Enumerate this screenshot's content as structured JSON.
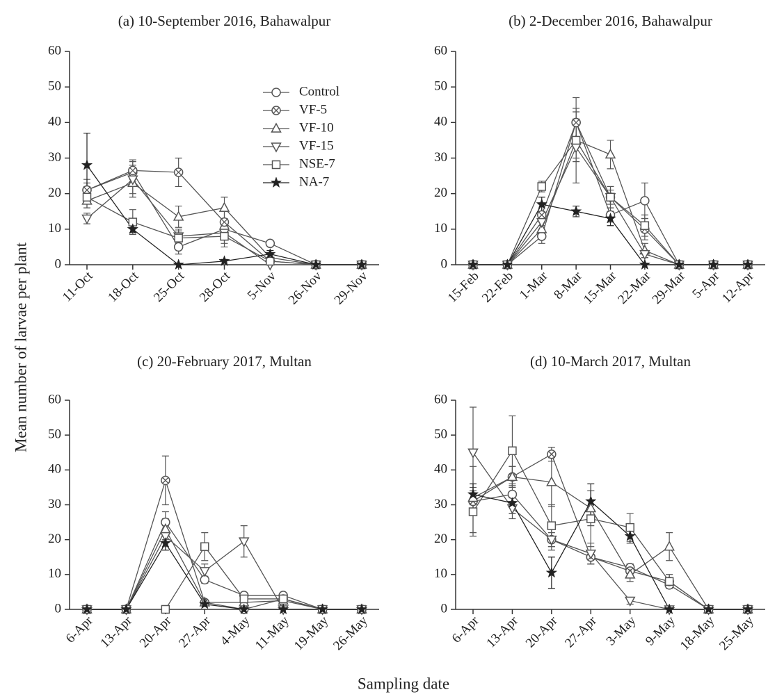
{
  "y_label": "Mean number of larvae per plant",
  "x_label": "Sampling date",
  "chart_data": [
    {
      "type": "line",
      "title": "(a) 10-September 2016, Bahawalpur",
      "legend": "upper right",
      "categories": [
        "11-Oct",
        "18-Oct",
        "25-Oct",
        "28-Oct",
        "5-Nov",
        "26-Nov",
        "29-Nov"
      ],
      "ylim": [
        0,
        60
      ],
      "yticks": [
        0,
        10,
        20,
        30,
        40,
        50,
        60
      ],
      "series": [
        {
          "name": "Control",
          "color": "#555555",
          "marker": "circle",
          "values": [
            21,
            26,
            5,
            10,
            6,
            0,
            0
          ],
          "errors": [
            2,
            2,
            2,
            2,
            0.5,
            0,
            0
          ]
        },
        {
          "name": "VF-5",
          "color": "#555555",
          "marker": "circle-x",
          "values": [
            21,
            26.5,
            26,
            12,
            1,
            0,
            0
          ],
          "errors": [
            3,
            3,
            4,
            3,
            0.5,
            0,
            0
          ]
        },
        {
          "name": "VF-10",
          "color": "#555555",
          "marker": "triangle-up",
          "values": [
            18,
            23,
            13.5,
            16,
            2,
            0,
            0
          ],
          "errors": [
            2,
            3,
            3,
            3,
            1,
            0,
            0
          ]
        },
        {
          "name": "VF-15",
          "color": "#555555",
          "marker": "triangle-down",
          "values": [
            13,
            24,
            8,
            9,
            0,
            0,
            0
          ],
          "errors": [
            1.5,
            5,
            2,
            3,
            0,
            0,
            0
          ]
        },
        {
          "name": "NSE-7",
          "color": "#555555",
          "marker": "square",
          "values": [
            19,
            12,
            7.5,
            8,
            1,
            0,
            0
          ],
          "errors": [
            3,
            3.5,
            2,
            3,
            0.5,
            0,
            0
          ]
        },
        {
          "name": "NA-7",
          "color": "#222222",
          "marker": "star",
          "values": [
            28,
            10,
            0,
            1,
            3,
            0,
            0
          ],
          "errors": [
            9,
            1,
            0,
            0.5,
            1,
            0,
            0
          ]
        }
      ]
    },
    {
      "type": "line",
      "title": "(b) 2-December 2016, Bahawalpur",
      "categories": [
        "15-Feb",
        "22-Feb",
        "1-Mar",
        "8-Mar",
        "15-Mar",
        "22-Mar",
        "29-Mar",
        "5-Apr",
        "12-Apr"
      ],
      "ylim": [
        0,
        60
      ],
      "yticks": [
        0,
        10,
        20,
        30,
        40,
        50,
        60
      ],
      "series": [
        {
          "name": "Control",
          "color": "#555555",
          "marker": "circle",
          "values": [
            0,
            0,
            8,
            40,
            14,
            18,
            0,
            0,
            0
          ],
          "errors": [
            0,
            0,
            2,
            7,
            2,
            5,
            0,
            0,
            0
          ]
        },
        {
          "name": "VF-5",
          "color": "#555555",
          "marker": "circle-x",
          "values": [
            0,
            0,
            14,
            40,
            19,
            10,
            0,
            0,
            0
          ],
          "errors": [
            0,
            0,
            3,
            4,
            2,
            3,
            0,
            0,
            0
          ]
        },
        {
          "name": "VF-10",
          "color": "#555555",
          "marker": "triangle-up",
          "values": [
            0,
            0,
            10,
            35,
            31,
            4,
            0,
            0,
            0
          ],
          "errors": [
            0,
            0,
            2,
            5,
            4,
            2,
            0,
            0,
            0
          ]
        },
        {
          "name": "VF-15",
          "color": "#555555",
          "marker": "triangle-down",
          "values": [
            0,
            0,
            12,
            33,
            19,
            3,
            0,
            0,
            0
          ],
          "errors": [
            0,
            0,
            2,
            10,
            3,
            1,
            0,
            0,
            0
          ]
        },
        {
          "name": "NSE-7",
          "color": "#555555",
          "marker": "square",
          "values": [
            0,
            0,
            22,
            35,
            19,
            11,
            0,
            0,
            0
          ],
          "errors": [
            0,
            0,
            1.5,
            6,
            3,
            3,
            0,
            0,
            0
          ]
        },
        {
          "name": "NA-7",
          "color": "#222222",
          "marker": "star",
          "values": [
            0,
            0,
            17,
            15,
            13,
            0,
            0,
            0,
            0
          ],
          "errors": [
            0,
            0,
            2,
            1.5,
            2,
            0,
            0,
            0,
            0
          ]
        }
      ]
    },
    {
      "type": "line",
      "title": "(c) 20-February 2017, Multan",
      "categories": [
        "6-Apr",
        "13-Apr",
        "20-Apr",
        "27-Apr",
        "4-May",
        "11-May",
        "19-May",
        "26-May"
      ],
      "ylim": [
        0,
        60
      ],
      "yticks": [
        0,
        10,
        20,
        30,
        40,
        50,
        60
      ],
      "series": [
        {
          "name": "Control",
          "color": "#555555",
          "marker": "circle",
          "values": [
            0,
            0,
            25,
            8.5,
            4,
            4,
            0,
            0
          ],
          "errors": [
            0,
            0,
            3,
            1,
            0.5,
            0.5,
            0,
            0
          ]
        },
        {
          "name": "VF-5",
          "color": "#555555",
          "marker": "circle-x",
          "values": [
            0,
            0,
            37,
            2,
            0,
            3,
            0,
            0
          ],
          "errors": [
            0,
            0,
            7,
            0.5,
            0,
            0.5,
            0,
            0
          ]
        },
        {
          "name": "VF-10",
          "color": "#555555",
          "marker": "triangle-up",
          "values": [
            0,
            0,
            23,
            2,
            2,
            2.5,
            0,
            0
          ],
          "errors": [
            0,
            0,
            3,
            0.5,
            0.5,
            0.5,
            0,
            0
          ]
        },
        {
          "name": "VF-15",
          "color": "#555555",
          "marker": "triangle-down",
          "values": [
            0,
            0,
            21,
            11,
            19.5,
            0,
            0,
            0
          ],
          "errors": [
            0,
            0,
            3,
            2,
            4.5,
            0,
            0,
            0
          ]
        },
        {
          "name": "NSE-7",
          "color": "#555555",
          "marker": "square",
          "values": [
            0,
            0,
            0,
            18,
            3,
            3,
            0,
            0
          ],
          "errors": [
            0,
            0,
            0,
            4,
            0.5,
            0.5,
            0,
            0
          ]
        },
        {
          "name": "NA-7",
          "color": "#222222",
          "marker": "star",
          "values": [
            0,
            0,
            19,
            1.5,
            0,
            0,
            0,
            0
          ],
          "errors": [
            0,
            0,
            2,
            0.5,
            0,
            0,
            0,
            0
          ]
        }
      ]
    },
    {
      "type": "line",
      "title": "(d) 10-March 2017, Multan",
      "categories": [
        "6-Apr",
        "13-Apr",
        "20-Apr",
        "27-Apr",
        "3-May",
        "9-May",
        "18-May",
        "25-May"
      ],
      "ylim": [
        0,
        60
      ],
      "yticks": [
        0,
        10,
        20,
        30,
        40,
        50,
        60
      ],
      "series": [
        {
          "name": "Control",
          "color": "#555555",
          "marker": "circle",
          "values": [
            31,
            33,
            20,
            15,
            12,
            7,
            0,
            0
          ],
          "errors": [
            3,
            3,
            2,
            2,
            1,
            1,
            0,
            0
          ]
        },
        {
          "name": "VF-5",
          "color": "#555555",
          "marker": "circle-x",
          "values": [
            31,
            38,
            44.5,
            15,
            11,
            8,
            0,
            0
          ],
          "errors": [
            10,
            3,
            2,
            2,
            2,
            2,
            0,
            0
          ]
        },
        {
          "name": "VF-10",
          "color": "#555555",
          "marker": "triangle-up",
          "values": [
            32,
            38,
            36.5,
            29,
            10,
            18,
            0,
            0
          ],
          "errors": [
            3,
            3,
            7,
            5,
            2,
            4,
            0,
            0
          ]
        },
        {
          "name": "VF-15",
          "color": "#555555",
          "marker": "triangle-down",
          "values": [
            45,
            29,
            20,
            16,
            2.5,
            0,
            0,
            0
          ],
          "errors": [
            13,
            3,
            3,
            3,
            1,
            0,
            0,
            0
          ]
        },
        {
          "name": "NSE-7",
          "color": "#555555",
          "marker": "square",
          "values": [
            28,
            45.5,
            24,
            26,
            23.5,
            8,
            0,
            0
          ],
          "errors": [
            6,
            10,
            6,
            8,
            4,
            2,
            0,
            0
          ]
        },
        {
          "name": "NA-7",
          "color": "#222222",
          "marker": "star",
          "values": [
            33,
            30.5,
            10.5,
            31,
            21,
            0,
            0,
            0
          ],
          "errors": [
            3,
            3,
            4.5,
            5,
            2,
            0,
            0,
            0
          ]
        }
      ]
    }
  ]
}
